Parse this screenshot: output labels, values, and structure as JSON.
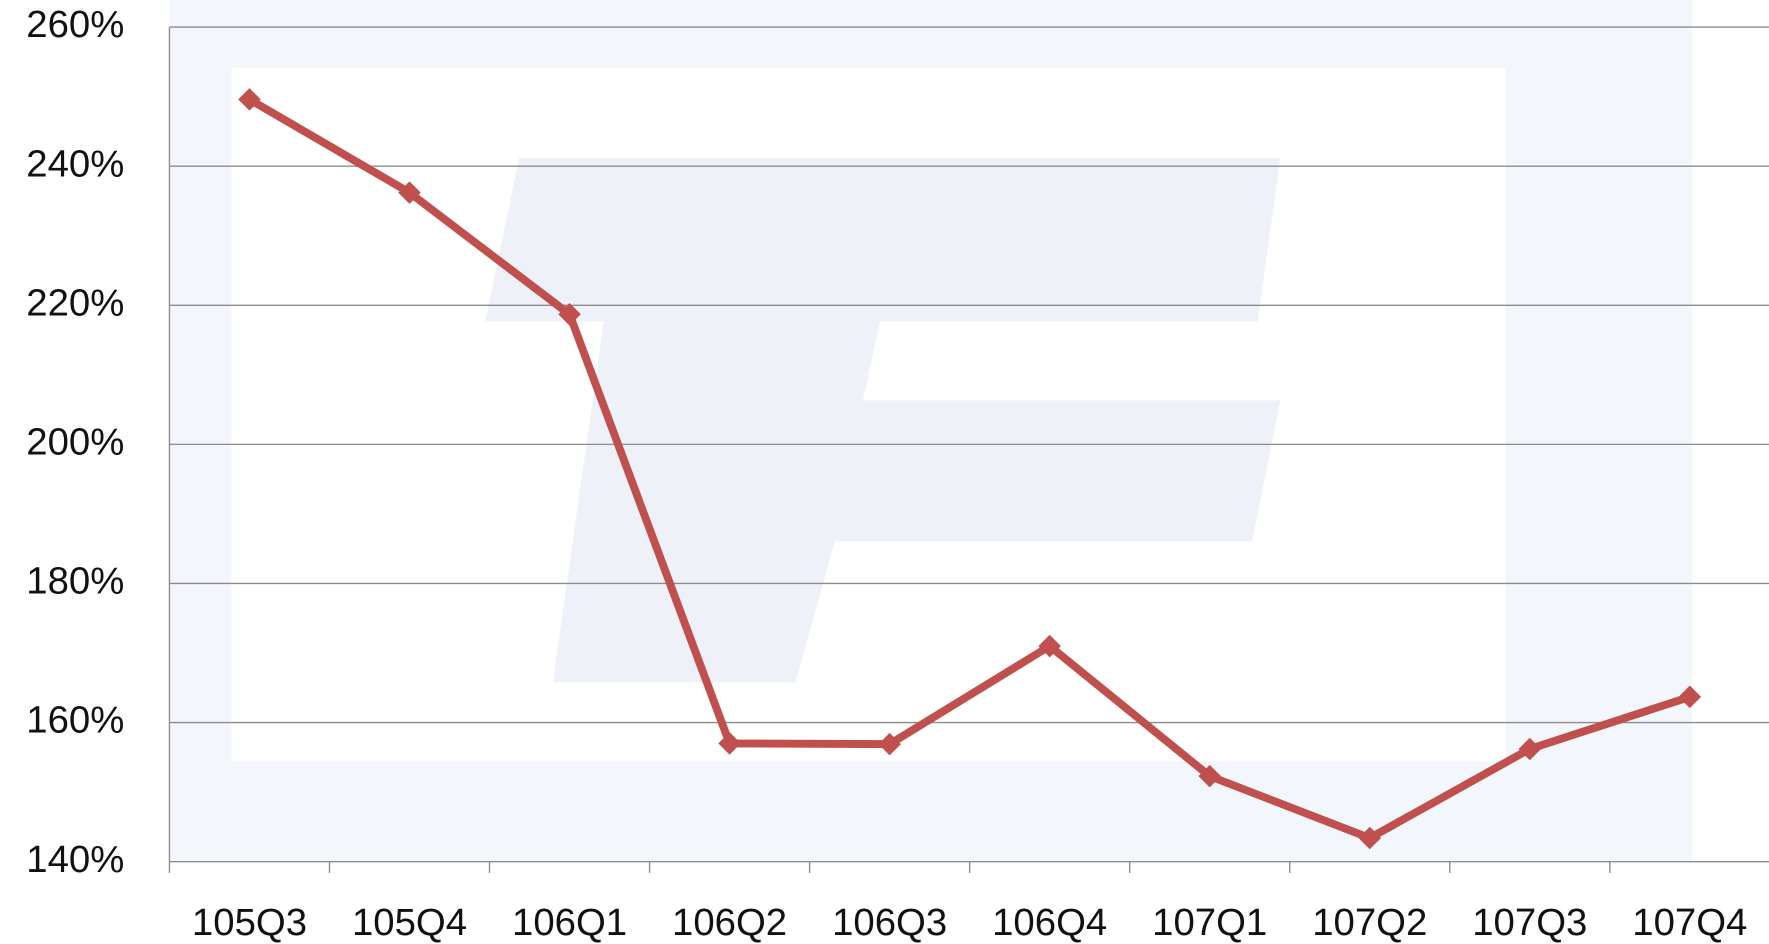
{
  "chart_data": {
    "type": "line",
    "categories": [
      "105Q3",
      "105Q4",
      "106Q1",
      "106Q2",
      "106Q3",
      "106Q4",
      "107Q1",
      "107Q2",
      "107Q3",
      "107Q4"
    ],
    "series": [
      {
        "color": "#c0504d",
        "values": [
          249.6,
          236.2,
          218.7,
          157.0,
          156.9,
          171.0,
          152.3,
          143.4,
          156.2,
          163.7
        ]
      }
    ],
    "ylim": [
      140,
      260
    ],
    "yticks": [
      {
        "value": 140,
        "label": "140%"
      },
      {
        "value": 160,
        "label": "160%"
      },
      {
        "value": 180,
        "label": "180%"
      },
      {
        "value": 200,
        "label": "200%"
      },
      {
        "value": 220,
        "label": "220%"
      },
      {
        "value": 240,
        "label": "240%"
      },
      {
        "value": 260,
        "label": "260%"
      }
    ],
    "grid": true
  }
}
